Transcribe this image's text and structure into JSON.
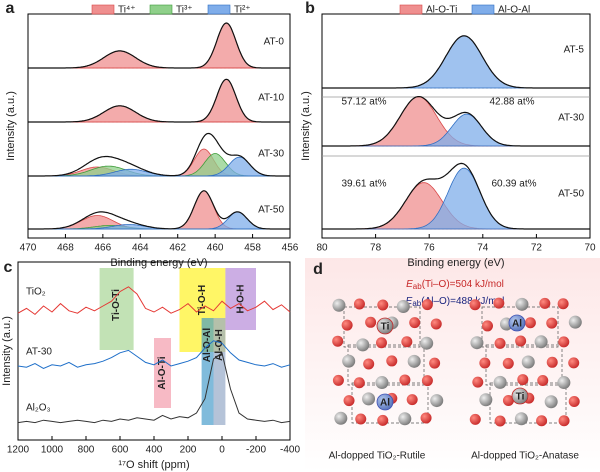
{
  "chart_data": [
    {
      "type": "area",
      "label": "a",
      "xlabel": "Binding energy (eV)",
      "ylabel": "Intensity (a.u.)",
      "xlim": [
        470,
        456
      ],
      "xticks": [
        470,
        468,
        466,
        464,
        462,
        460,
        458,
        456
      ],
      "legend": [
        {
          "name": "Ti⁴⁺",
          "color": "#ef8f8f"
        },
        {
          "name": "Ti³⁺",
          "color": "#8fd08a"
        },
        {
          "name": "Ti²⁺",
          "color": "#7fadea"
        }
      ],
      "samples": [
        {
          "name": "AT-0",
          "peaks": [
            {
              "component": 0,
              "center": 459.4,
              "height": 1.0,
              "fwhm": 1.2
            },
            {
              "component": 0,
              "center": 465.1,
              "height": 0.38,
              "fwhm": 2.0
            }
          ]
        },
        {
          "name": "AT-10",
          "peaks": [
            {
              "component": 0,
              "center": 459.4,
              "height": 0.95,
              "fwhm": 1.2
            },
            {
              "component": 0,
              "center": 465.1,
              "height": 0.36,
              "fwhm": 2.0
            }
          ]
        },
        {
          "name": "AT-30",
          "peaks": [
            {
              "component": 0,
              "center": 460.6,
              "height": 0.6,
              "fwhm": 1.2
            },
            {
              "component": 0,
              "center": 466.3,
              "height": 0.2,
              "fwhm": 2.0
            },
            {
              "component": 1,
              "center": 460.0,
              "height": 0.5,
              "fwhm": 1.3
            },
            {
              "component": 1,
              "center": 465.7,
              "height": 0.22,
              "fwhm": 2.2
            },
            {
              "component": 2,
              "center": 458.7,
              "height": 0.42,
              "fwhm": 1.3
            },
            {
              "component": 2,
              "center": 464.5,
              "height": 0.15,
              "fwhm": 2.0
            }
          ]
        },
        {
          "name": "AT-50",
          "peaks": [
            {
              "component": 0,
              "center": 460.6,
              "height": 0.85,
              "fwhm": 1.2
            },
            {
              "component": 0,
              "center": 466.3,
              "height": 0.3,
              "fwhm": 2.0
            },
            {
              "component": 1,
              "center": 465.6,
              "height": 0.08,
              "fwhm": 2.0
            },
            {
              "component": 2,
              "center": 458.8,
              "height": 0.38,
              "fwhm": 1.2
            },
            {
              "component": 2,
              "center": 464.6,
              "height": 0.1,
              "fwhm": 2.0
            }
          ]
        }
      ]
    },
    {
      "type": "area",
      "label": "b",
      "xlabel": "Binding energy (eV)",
      "ylabel": "Intensity (a.u.)",
      "xlim": [
        80,
        70
      ],
      "xticks": [
        80,
        78,
        76,
        74,
        72,
        70
      ],
      "legend": [
        {
          "name": "Al-O-Ti",
          "color": "#ef8f8f"
        },
        {
          "name": "Al-O-Al",
          "color": "#7fadea"
        }
      ],
      "samples": [
        {
          "name": "AT-5",
          "peaks": [
            {
              "component": 1,
              "center": 74.7,
              "height": 0.9,
              "fwhm": 1.6
            }
          ]
        },
        {
          "name": "AT-30",
          "peaks": [
            {
              "component": 0,
              "center": 76.4,
              "height": 0.85,
              "fwhm": 1.6
            },
            {
              "component": 1,
              "center": 74.6,
              "height": 0.55,
              "fwhm": 1.3
            }
          ]
        },
        {
          "name": "AT-50",
          "peaks": [
            {
              "component": 0,
              "center": 76.2,
              "height": 0.8,
              "fwhm": 1.6
            },
            {
              "component": 1,
              "center": 74.7,
              "height": 1.05,
              "fwhm": 1.4
            }
          ]
        }
      ],
      "annotations": [
        {
          "text": "57.12 at%",
          "color": "#d32f2f"
        },
        {
          "text": "42.88 at%",
          "color": "#1f5fb8"
        },
        {
          "text": "39.61 at%",
          "color": "#d32f2f"
        },
        {
          "text": "60.39 at%",
          "color": "#1f5fb8"
        }
      ]
    },
    {
      "type": "line",
      "label": "c",
      "xlabel": "¹⁷O shift (ppm)",
      "ylabel": "Intensity (a.u.)",
      "xlim": [
        1200,
        -400
      ],
      "xticks": [
        1200,
        1000,
        800,
        600,
        400,
        200,
        0,
        -200,
        -400
      ],
      "x": [
        1200,
        1150,
        1100,
        1050,
        1000,
        950,
        900,
        850,
        800,
        750,
        700,
        650,
        600,
        550,
        500,
        450,
        400,
        350,
        300,
        250,
        200,
        150,
        100,
        50,
        0,
        -50,
        -100,
        -150,
        -200,
        -250,
        -300,
        -350,
        -400
      ],
      "series": [
        {
          "name": "TiO₂",
          "color": "#e53935",
          "values": [
            4,
            8,
            3,
            10,
            5,
            12,
            6,
            4,
            9,
            6,
            10,
            14,
            22,
            26,
            20,
            8,
            5,
            9,
            4,
            7,
            12,
            5,
            10,
            6,
            14,
            8,
            12,
            6,
            9,
            14,
            7,
            11,
            5
          ]
        },
        {
          "name": "AT-30",
          "color": "#1e6fc9",
          "values": [
            5,
            4,
            7,
            3,
            6,
            5,
            8,
            4,
            6,
            7,
            9,
            12,
            16,
            18,
            13,
            8,
            6,
            10,
            5,
            7,
            9,
            12,
            20,
            26,
            24,
            16,
            10,
            8,
            6,
            5,
            7,
            4,
            6
          ]
        },
        {
          "name": "Al₂O₃",
          "color": "#333333",
          "values": [
            2,
            3,
            2,
            4,
            3,
            2,
            3,
            4,
            3,
            2,
            4,
            3,
            5,
            4,
            6,
            5,
            4,
            8,
            5,
            7,
            6,
            10,
            22,
            55,
            60,
            30,
            10,
            5,
            4,
            3,
            4,
            2,
            3
          ]
        }
      ],
      "regions": [
        {
          "label": "Ti-O-Ti",
          "range": [
            720,
            520
          ],
          "color": "rgba(120,190,90,0.45)"
        },
        {
          "label": "Al-O-Ti",
          "range": [
            400,
            300
          ],
          "color": "rgba(240,130,150,0.55)"
        },
        {
          "label": "Ti-O-H",
          "range": [
            250,
            -20
          ],
          "color": "rgba(255,240,0,0.6)"
        },
        {
          "label": "Al-O-Al",
          "range": [
            120,
            50
          ],
          "color": "rgba(60,150,200,0.65)"
        },
        {
          "label": "Al-O-H",
          "range": [
            50,
            -20
          ],
          "color": "rgba(150,170,200,0.7)"
        },
        {
          "label": "H-O-H",
          "range": [
            -20,
            -200
          ],
          "color": "rgba(170,120,210,0.6)"
        }
      ]
    }
  ],
  "diagram": {
    "label": "d",
    "energies": [
      {
        "symbol": "E",
        "sub": "ab",
        "text": "(Ti–O)=504 kJ/mol",
        "color": "#c62828"
      },
      {
        "symbol": "E",
        "sub": "ab",
        "text": "(Al–O)=488 kJ/mol",
        "color": "#1a237e"
      }
    ],
    "structures": [
      {
        "caption": "Al-dopped TiO₂-Rutile",
        "atoms": [
          "Ti",
          "Al"
        ]
      },
      {
        "caption": "Al-dopped TiO₂-Anatase",
        "atoms": [
          "Al",
          "Ti"
        ]
      }
    ]
  }
}
